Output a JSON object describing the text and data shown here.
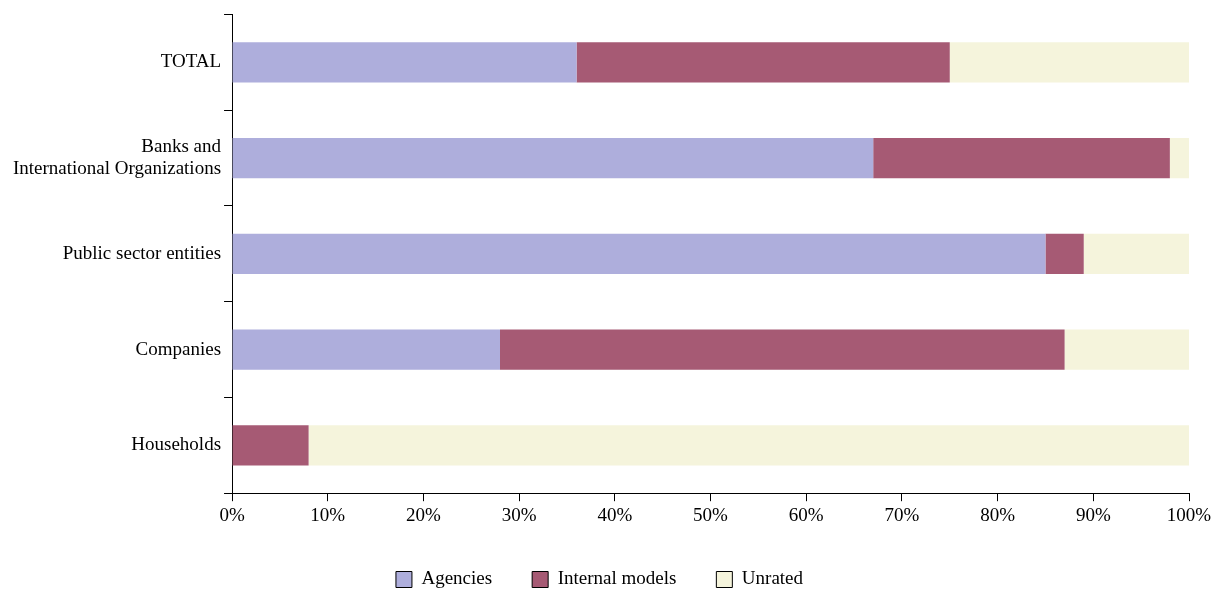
{
  "chart_data": {
    "type": "bar",
    "orientation": "horizontal",
    "stacked": true,
    "categories": [
      "TOTAL",
      "Banks and\nInternational Organizations",
      "Public sector entities",
      "Companies",
      "Households"
    ],
    "series": [
      {
        "name": "Agencies",
        "color": "#aeaedc",
        "values": [
          36,
          67,
          85,
          28,
          0
        ]
      },
      {
        "name": "Internal models",
        "color": "#a65a74",
        "values": [
          39,
          31,
          4,
          59,
          8
        ]
      },
      {
        "name": "Unrated",
        "color": "#f5f4dc",
        "values": [
          25,
          2,
          11,
          13,
          92
        ]
      }
    ],
    "xlim": [
      0,
      100
    ],
    "xticks": [
      {
        "value": 0,
        "label": "0%"
      },
      {
        "value": 10,
        "label": "10%"
      },
      {
        "value": 20,
        "label": "20%"
      },
      {
        "value": 30,
        "label": "30%"
      },
      {
        "value": 40,
        "label": "40%"
      },
      {
        "value": 50,
        "label": "50%"
      },
      {
        "value": 60,
        "label": "60%"
      },
      {
        "value": 70,
        "label": "70%"
      },
      {
        "value": 80,
        "label": "80%"
      },
      {
        "value": 90,
        "label": "90%"
      },
      {
        "value": 100,
        "label": "100%"
      }
    ],
    "grid": false,
    "legend": "bottom"
  }
}
